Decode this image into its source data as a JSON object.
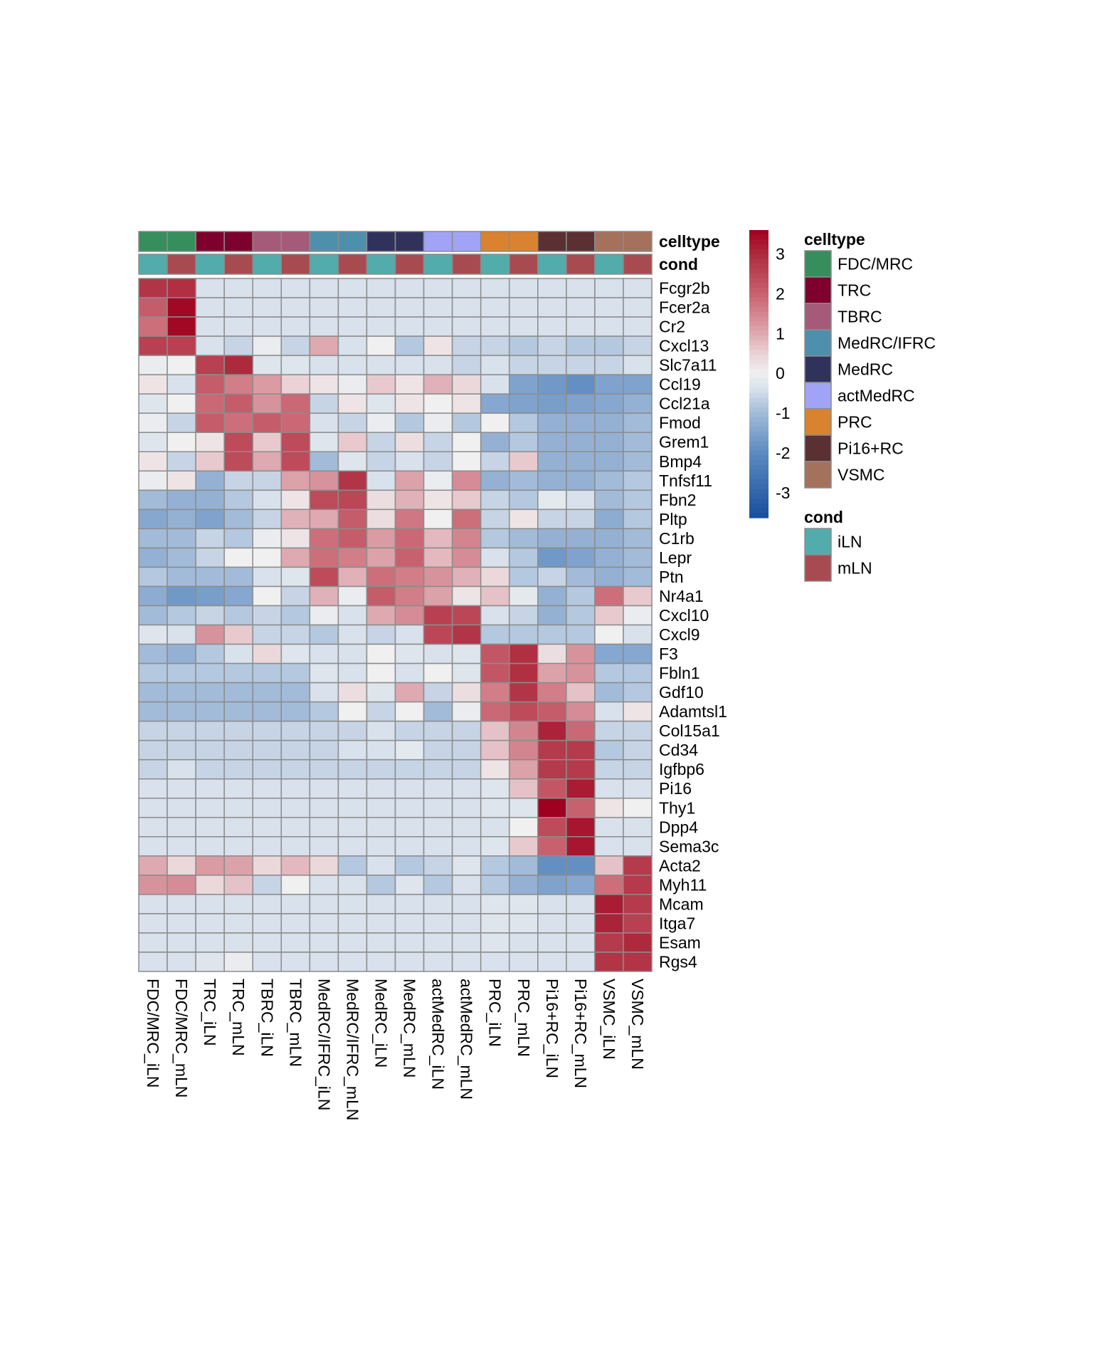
{
  "chart_data": {
    "type": "heatmap",
    "title": "",
    "xlabel": "",
    "ylabel": "",
    "columns": [
      "FDC/MRC_iLN",
      "FDC/MRC_mLN",
      "TRC_iLN",
      "TRC_mLN",
      "TBRC_iLN",
      "TBRC_mLN",
      "MedRC/IFRC_iLN",
      "MedRC/IFRC_mLN",
      "MedRC_iLN",
      "MedRC_mLN",
      "actMedRC_iLN",
      "actMedRC_mLN",
      "PRC_iLN",
      "PRC_mLN",
      "Pi16+RC_iLN",
      "Pi16+RC_mLN",
      "VSMC_iLN",
      "VSMC_mLN"
    ],
    "rows": [
      "Fcgr2b",
      "Fcer2a",
      "Cr2",
      "Cxcl13",
      "Slc7a11",
      "Ccl19",
      "Ccl21a",
      "Fmod",
      "Grem1",
      "Bmp4",
      "Tnfsf11",
      "Fbn2",
      "Pltp",
      "C1rb",
      "Lepr",
      "Ptn",
      "Nr4a1",
      "Cxcl10",
      "Cxcl9",
      "F3",
      "Fbln1",
      "Gdf10",
      "Adamtsl1",
      "Col15a1",
      "Cd34",
      "Igfbp6",
      "Pi16",
      "Thy1",
      "Dpp4",
      "Sema3c",
      "Acta2",
      "Myh11",
      "Mcam",
      "Itga7",
      "Esam",
      "Rgs4"
    ],
    "values": [
      [
        2.8,
        2.9,
        -0.4,
        -0.4,
        -0.4,
        -0.4,
        -0.4,
        -0.4,
        -0.4,
        -0.4,
        -0.4,
        -0.4,
        -0.4,
        -0.4,
        -0.4,
        -0.4,
        -0.4,
        -0.4
      ],
      [
        2.1,
        3.5,
        -0.4,
        -0.4,
        -0.4,
        -0.4,
        -0.4,
        -0.4,
        -0.4,
        -0.4,
        -0.4,
        -0.4,
        -0.4,
        -0.4,
        -0.4,
        -0.4,
        -0.4,
        -0.4
      ],
      [
        1.8,
        3.5,
        -0.4,
        -0.4,
        -0.4,
        -0.4,
        -0.4,
        -0.4,
        -0.4,
        -0.4,
        -0.4,
        -0.4,
        -0.4,
        -0.4,
        -0.4,
        -0.4,
        -0.4,
        -0.4
      ],
      [
        2.6,
        2.6,
        -0.4,
        -0.6,
        -0.1,
        -0.6,
        1.0,
        -0.4,
        0.0,
        -0.8,
        0.2,
        -0.6,
        -0.6,
        -0.8,
        -0.6,
        -0.8,
        -0.8,
        -0.6
      ],
      [
        -0.1,
        0.0,
        2.6,
        3.0,
        -0.3,
        -0.3,
        -0.4,
        -0.4,
        -0.4,
        -0.4,
        -0.4,
        -0.6,
        -0.4,
        -0.6,
        -0.6,
        -0.6,
        -0.6,
        -0.4
      ],
      [
        0.2,
        -0.4,
        2.1,
        1.6,
        1.2,
        0.5,
        0.2,
        -0.1,
        0.6,
        0.2,
        0.9,
        0.4,
        -0.4,
        -1.5,
        -1.7,
        -1.9,
        -1.5,
        -1.5
      ],
      [
        -0.3,
        0.0,
        1.9,
        2.1,
        1.3,
        1.9,
        -0.6,
        0.2,
        -0.3,
        0.2,
        0.0,
        0.2,
        -1.4,
        -1.5,
        -1.6,
        -1.5,
        -1.4,
        -1.2
      ],
      [
        -0.1,
        -0.6,
        2.1,
        1.8,
        2.1,
        1.9,
        -0.4,
        -0.6,
        -0.1,
        -0.8,
        -0.1,
        -0.8,
        0.0,
        -0.8,
        -1.2,
        -1.2,
        -1.2,
        -1.0
      ],
      [
        -0.3,
        0.0,
        0.2,
        2.4,
        0.6,
        2.4,
        -0.3,
        0.6,
        -0.6,
        0.3,
        -0.6,
        0.0,
        -1.2,
        -0.8,
        -1.2,
        -1.2,
        -1.2,
        -1.0
      ],
      [
        0.2,
        -0.6,
        0.6,
        2.4,
        1.0,
        2.4,
        -1.0,
        -0.3,
        -0.6,
        -0.4,
        -0.6,
        0.0,
        -0.6,
        0.6,
        -1.2,
        -1.2,
        -1.2,
        -1.0
      ],
      [
        -0.1,
        0.2,
        -1.2,
        -0.6,
        -0.6,
        1.1,
        1.3,
        2.8,
        -0.4,
        1.1,
        -0.1,
        1.4,
        -1.2,
        -1.0,
        -1.2,
        -1.2,
        -1.0,
        -0.8
      ],
      [
        -1.0,
        -1.2,
        -1.2,
        -0.8,
        -0.4,
        0.2,
        2.4,
        2.5,
        0.3,
        0.9,
        0.2,
        0.6,
        -0.6,
        -0.8,
        -0.2,
        -0.4,
        -1.0,
        -0.8
      ],
      [
        -1.4,
        -1.2,
        -1.5,
        -1.0,
        -0.6,
        0.9,
        1.0,
        2.1,
        0.3,
        1.7,
        0.0,
        1.8,
        -0.6,
        0.2,
        -0.6,
        -0.6,
        -1.3,
        -0.8
      ],
      [
        -1.0,
        -1.0,
        -0.6,
        -0.8,
        -0.1,
        0.2,
        1.8,
        2.1,
        1.2,
        1.9,
        0.8,
        1.5,
        -0.8,
        -1.0,
        -1.2,
        -1.2,
        -1.2,
        -1.0
      ],
      [
        -1.2,
        -1.0,
        -0.6,
        0.0,
        0.0,
        1.0,
        1.8,
        1.6,
        1.1,
        2.0,
        0.8,
        1.4,
        -0.4,
        -0.8,
        -1.7,
        -1.5,
        -1.2,
        -1.0
      ],
      [
        -0.8,
        -1.0,
        -1.0,
        -1.0,
        -0.4,
        -0.3,
        2.4,
        0.9,
        1.8,
        1.6,
        1.3,
        0.9,
        0.4,
        -0.8,
        -0.6,
        -1.0,
        -1.2,
        -1.0
      ],
      [
        -1.3,
        -1.7,
        -1.6,
        -1.4,
        0.0,
        -0.6,
        0.9,
        -0.1,
        2.1,
        1.6,
        1.1,
        0.2,
        0.7,
        -0.2,
        -1.2,
        -0.8,
        1.8,
        0.6
      ],
      [
        -1.0,
        -0.8,
        -0.6,
        -0.8,
        -0.6,
        -0.8,
        -0.1,
        -0.4,
        1.0,
        1.4,
        2.6,
        2.5,
        -0.4,
        -0.6,
        -1.2,
        -0.8,
        0.6,
        -0.1
      ],
      [
        -0.3,
        -0.4,
        1.3,
        0.6,
        -0.6,
        -0.6,
        -0.8,
        -0.4,
        -0.6,
        -0.4,
        2.5,
        2.8,
        -0.8,
        -0.8,
        -0.8,
        -0.8,
        0.0,
        -0.4
      ],
      [
        -1.0,
        -1.2,
        -0.8,
        -0.4,
        0.4,
        -0.3,
        -0.4,
        -0.4,
        0.0,
        -0.3,
        -0.4,
        -0.3,
        2.2,
        2.9,
        0.3,
        1.3,
        -1.4,
        -1.4
      ],
      [
        -0.8,
        -0.8,
        -0.8,
        -0.8,
        -0.8,
        -0.8,
        -0.3,
        -0.4,
        0.0,
        -0.4,
        0.0,
        -0.3,
        2.2,
        2.9,
        1.1,
        1.3,
        -0.8,
        -0.8
      ],
      [
        -1.0,
        -1.0,
        -1.0,
        -1.0,
        -1.0,
        -1.0,
        -0.4,
        0.3,
        -0.3,
        1.0,
        -0.6,
        0.3,
        1.6,
        2.8,
        1.6,
        0.7,
        -1.0,
        -0.8
      ],
      [
        -1.0,
        -1.0,
        -1.0,
        -1.0,
        -1.0,
        -1.0,
        -0.8,
        0.0,
        -0.6,
        0.0,
        -1.0,
        -0.1,
        1.9,
        2.4,
        2.1,
        1.4,
        -0.4,
        0.2
      ],
      [
        -0.6,
        -0.6,
        -0.6,
        -0.6,
        -0.6,
        -0.6,
        -0.6,
        -0.6,
        -0.4,
        -0.6,
        -0.6,
        -0.6,
        0.7,
        1.5,
        3.1,
        1.9,
        -0.6,
        -0.6
      ],
      [
        -0.6,
        -0.6,
        -0.6,
        -0.6,
        -0.6,
        -0.6,
        -0.6,
        -0.4,
        -0.4,
        -0.2,
        -0.6,
        -0.6,
        0.7,
        1.5,
        2.7,
        2.7,
        -0.8,
        -0.6
      ],
      [
        -0.6,
        -0.4,
        -0.6,
        -0.6,
        -0.6,
        -0.6,
        -0.6,
        -0.6,
        -0.6,
        -0.6,
        -0.6,
        -0.6,
        0.2,
        1.1,
        2.7,
        2.7,
        -0.6,
        -0.6
      ],
      [
        -0.4,
        -0.4,
        -0.4,
        -0.4,
        -0.4,
        -0.4,
        -0.4,
        -0.4,
        -0.4,
        -0.4,
        -0.4,
        -0.4,
        -0.3,
        0.7,
        2.2,
        3.2,
        -0.4,
        -0.4
      ],
      [
        -0.4,
        -0.4,
        -0.4,
        -0.4,
        -0.4,
        -0.4,
        -0.4,
        -0.4,
        -0.4,
        -0.4,
        -0.4,
        -0.4,
        -0.3,
        -0.3,
        3.6,
        2.0,
        0.2,
        0.0
      ],
      [
        -0.4,
        -0.4,
        -0.4,
        -0.4,
        -0.4,
        -0.4,
        -0.4,
        -0.4,
        -0.4,
        -0.4,
        -0.4,
        -0.4,
        -0.4,
        0.0,
        2.4,
        3.3,
        -0.4,
        -0.4
      ],
      [
        -0.4,
        -0.4,
        -0.4,
        -0.4,
        -0.4,
        -0.4,
        -0.4,
        -0.4,
        -0.4,
        -0.4,
        -0.4,
        -0.4,
        -0.3,
        0.6,
        2.0,
        3.3,
        -0.4,
        -0.4
      ],
      [
        1.0,
        0.4,
        1.2,
        1.1,
        0.4,
        0.8,
        0.4,
        -0.8,
        -0.4,
        -0.8,
        -0.6,
        -0.3,
        -0.8,
        -1.0,
        -1.9,
        -1.9,
        0.7,
        2.7
      ],
      [
        1.3,
        1.4,
        0.4,
        0.7,
        -0.6,
        0.0,
        -0.4,
        -0.4,
        -0.8,
        -0.3,
        -0.8,
        -0.4,
        -0.8,
        -1.2,
        -1.5,
        -1.4,
        1.8,
        2.7
      ],
      [
        -0.4,
        -0.4,
        -0.4,
        -0.4,
        -0.4,
        -0.4,
        -0.4,
        -0.4,
        -0.4,
        -0.4,
        -0.4,
        -0.4,
        -0.3,
        -0.3,
        -0.4,
        -0.4,
        3.2,
        2.7
      ],
      [
        -0.4,
        -0.4,
        -0.4,
        -0.4,
        -0.4,
        -0.4,
        -0.4,
        -0.4,
        -0.4,
        -0.4,
        -0.4,
        -0.4,
        -0.3,
        -0.3,
        -0.4,
        -0.4,
        3.1,
        2.6
      ],
      [
        -0.4,
        -0.4,
        -0.4,
        -0.4,
        -0.4,
        -0.4,
        -0.4,
        -0.4,
        -0.4,
        -0.4,
        -0.4,
        -0.4,
        -0.3,
        -0.4,
        -0.4,
        -0.4,
        2.7,
        3.0
      ],
      [
        -0.4,
        -0.4,
        -0.3,
        -0.1,
        -0.4,
        -0.4,
        -0.4,
        -0.4,
        -0.4,
        -0.4,
        -0.4,
        -0.4,
        -0.4,
        -0.4,
        -0.4,
        -0.4,
        2.8,
        2.8
      ]
    ],
    "annotations": {
      "celltype": {
        "label": "celltype",
        "per_column": [
          "FDC/MRC",
          "FDC/MRC",
          "TRC",
          "TRC",
          "TBRC",
          "TBRC",
          "MedRC/IFRC",
          "MedRC/IFRC",
          "MedRC",
          "MedRC",
          "actMedRC",
          "actMedRC",
          "PRC",
          "PRC",
          "Pi16+RC",
          "Pi16+RC",
          "VSMC",
          "VSMC"
        ]
      },
      "cond": {
        "label": "cond",
        "per_column": [
          "iLN",
          "mLN",
          "iLN",
          "mLN",
          "iLN",
          "mLN",
          "iLN",
          "mLN",
          "iLN",
          "mLN",
          "iLN",
          "mLN",
          "iLN",
          "mLN",
          "iLN",
          "mLN",
          "iLN",
          "mLN"
        ]
      }
    },
    "colorbar": {
      "range": [
        -3.63,
        3.6
      ],
      "ticks": [
        3,
        2,
        1,
        0,
        -1,
        -2,
        -3
      ],
      "stops": [
        {
          "value": -3.6,
          "color": "#1a4f9c"
        },
        {
          "value": -2.0,
          "color": "#5c8ac1"
        },
        {
          "value": -1.0,
          "color": "#a2bbd8"
        },
        {
          "value": -0.4,
          "color": "#d8e1ec"
        },
        {
          "value": 0.0,
          "color": "#f0f0f0"
        },
        {
          "value": 0.5,
          "color": "#ead2d6"
        },
        {
          "value": 1.0,
          "color": "#dea9b0"
        },
        {
          "value": 2.0,
          "color": "#c8616e"
        },
        {
          "value": 3.0,
          "color": "#ad2a3d"
        },
        {
          "value": 3.6,
          "color": "#a0001f"
        }
      ]
    },
    "legends": [
      {
        "title": "celltype",
        "entries": [
          {
            "label": "FDC/MRC",
            "color": "#368e5c"
          },
          {
            "label": "TRC",
            "color": "#7d002d"
          },
          {
            "label": "TBRC",
            "color": "#a45a78"
          },
          {
            "label": "MedRC/IFRC",
            "color": "#4e90ab"
          },
          {
            "label": "MedRC",
            "color": "#31325b"
          },
          {
            "label": "actMedRC",
            "color": "#a1a3f6"
          },
          {
            "label": "PRC",
            "color": "#d9822f"
          },
          {
            "label": "Pi16+RC",
            "color": "#5b3033"
          },
          {
            "label": "VSMC",
            "color": "#a4725c"
          }
        ]
      },
      {
        "title": "cond",
        "entries": [
          {
            "label": "iLN",
            "color": "#52acac"
          },
          {
            "label": "mLN",
            "color": "#a84b51"
          }
        ]
      }
    ],
    "legend_position": "right",
    "grid": true
  }
}
